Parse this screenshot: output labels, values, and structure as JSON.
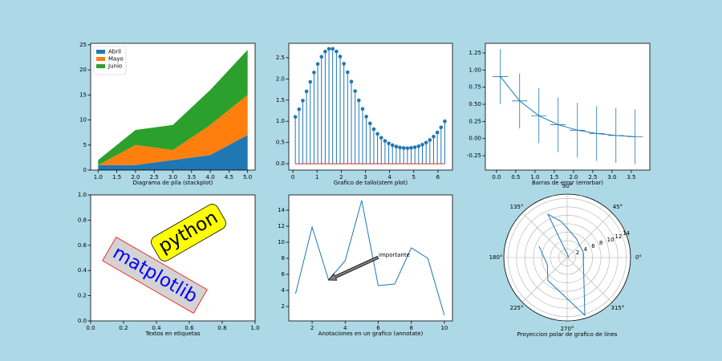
{
  "chart_data": [
    {
      "type": "stackplot",
      "xlabel": "Diagrama de pila (stackplot)",
      "legend": "upper left",
      "x": [
        1,
        2,
        3,
        4,
        5
      ],
      "series": [
        {
          "name": "Abril",
          "color": "#1f77b4",
          "values": [
            1,
            1,
            2,
            3,
            7
          ]
        },
        {
          "name": "Mayo",
          "color": "#ff7f0e",
          "values": [
            0,
            4,
            2,
            6,
            8
          ]
        },
        {
          "name": "Junio",
          "color": "#2ca02c",
          "values": [
            1,
            3,
            5,
            7,
            9
          ]
        }
      ],
      "xlim": [
        0.8,
        5.2
      ],
      "ylim": [
        0,
        25.3
      ],
      "xticks": [
        {
          "value": 1,
          "label": "1.0"
        },
        1.5,
        {
          "value": 2,
          "label": "2.0"
        },
        2.5,
        {
          "value": 3,
          "label": "3.0"
        },
        3.5,
        {
          "value": 4,
          "label": "4.0"
        },
        4.5,
        {
          "value": 5,
          "label": "5.0"
        }
      ],
      "yticks": [
        0,
        5,
        10,
        15,
        20,
        25
      ]
    },
    {
      "type": "stem",
      "xlabel": "Grafico de tallo(stem plot)",
      "color": "#1f77b4",
      "baseline_color": "#d62728",
      "x": [
        0.1,
        0.2546,
        0.4092,
        0.5637,
        0.7183,
        0.8729,
        1.0275,
        1.1821,
        1.3366,
        1.4912,
        1.6458,
        1.8004,
        1.955,
        2.1095,
        2.2641,
        2.4187,
        2.5733,
        2.7279,
        2.8824,
        3.037,
        3.1916,
        3.3462,
        3.5008,
        3.6553,
        3.8099,
        3.9645,
        4.1191,
        4.2737,
        4.4282,
        4.5828,
        4.7374,
        4.892,
        5.0466,
        5.2011,
        5.3557,
        5.5103,
        5.6649,
        5.8195,
        5.974,
        6.1286,
        6.2832
      ],
      "values": [
        1.105,
        1.286,
        1.489,
        1.706,
        1.931,
        2.152,
        2.353,
        2.522,
        2.645,
        2.71,
        2.711,
        2.648,
        2.528,
        2.359,
        2.158,
        1.937,
        1.713,
        1.495,
        1.292,
        1.11,
        0.951,
        0.816,
        0.704,
        0.612,
        0.538,
        0.48,
        0.437,
        0.404,
        0.383,
        0.371,
        0.368,
        0.374,
        0.389,
        0.414,
        0.449,
        0.497,
        0.56,
        0.639,
        0.738,
        0.857,
        1.0
      ],
      "xlim": [
        -0.17,
        6.6
      ],
      "ylim": [
        -0.15,
        2.84
      ],
      "xticks": [
        0,
        1,
        2,
        3,
        4,
        5,
        6
      ],
      "yticks": [
        {
          "value": 0,
          "label": "0.0"
        },
        0.5,
        {
          "value": 1,
          "label": "1.0"
        },
        1.5,
        {
          "value": 2,
          "label": "2.0"
        },
        2.5
      ]
    },
    {
      "type": "errorbar",
      "xlabel": "Barras de error (errorbar)",
      "color": "#1f77b4",
      "x": [
        0.1,
        0.6,
        1.1,
        1.6,
        2.1,
        2.6,
        3.1,
        3.6
      ],
      "values": [
        0.905,
        0.549,
        0.333,
        0.202,
        0.122,
        0.074,
        0.045,
        0.027
      ],
      "yerr": 0.4,
      "xerr": 0.2,
      "xlim": [
        -0.29,
        3.98
      ],
      "ylim": [
        -0.46,
        1.39
      ],
      "xticks": [
        {
          "value": 0,
          "label": "0.0"
        },
        0.5,
        {
          "value": 1,
          "label": "1.0"
        },
        1.5,
        {
          "value": 2,
          "label": "2.0"
        },
        2.5,
        {
          "value": 3,
          "label": "3.0"
        },
        3.5
      ],
      "yticks": [
        -0.25,
        {
          "value": 0,
          "label": "0.00"
        },
        0.25,
        {
          "value": 0.5,
          "label": "0.50"
        },
        0.75,
        {
          "value": 1,
          "label": "1.00"
        },
        1.25
      ]
    },
    {
      "type": "text",
      "xlabel": "Textos en etiquetas",
      "annotations": [
        {
          "text": "python",
          "color": "#000000",
          "box_color": "#ffff00",
          "edge_color": "#000000"
        },
        {
          "text": "matplotlib",
          "color": "#0000ff",
          "box_color": "#d3d3d3",
          "edge_color": "#ff0000"
        }
      ],
      "xlim": [
        0,
        1
      ],
      "ylim": [
        0,
        1
      ],
      "xticks": [
        {
          "value": 0,
          "label": "0.0"
        },
        0.2,
        0.4,
        0.6,
        0.8,
        {
          "value": 1,
          "label": "1.0"
        }
      ],
      "yticks": [
        {
          "value": 0,
          "label": "0.0"
        },
        0.2,
        0.4,
        0.6,
        0.8,
        {
          "value": 1,
          "label": "1.0"
        }
      ]
    },
    {
      "type": "line",
      "xlabel": "Anotaciones en un grafico (annotate)",
      "color": "#1f77b4",
      "annotation": "importante",
      "x": [
        1,
        2,
        3,
        4,
        5,
        6,
        7,
        8,
        9,
        10
      ],
      "values": [
        3.6,
        11.9,
        5.3,
        7.7,
        15.2,
        4.6,
        4.8,
        9.3,
        8.0,
        0.9
      ],
      "xlim": [
        0.59,
        10.49
      ],
      "ylim": [
        0.2,
        15.9
      ],
      "xticks": [
        2,
        4,
        6,
        8,
        10
      ],
      "yticks": [
        2,
        4,
        6,
        8,
        10,
        12,
        14
      ]
    },
    {
      "type": "polar",
      "xlabel": "Proyeccion polar de grafico de lines",
      "color": "#1f77b4",
      "grid": true,
      "theta": [
        0,
        114,
        99,
        65,
        19,
        287,
        230,
        200,
        158
      ],
      "values": [
        0.4,
        11.2,
        8.6,
        5.0,
        4.0,
        14.3,
        7.1,
        5.0,
        7.2
      ],
      "rlim": [
        0,
        15
      ],
      "rticks": [
        2,
        4,
        6,
        8,
        10,
        12,
        14
      ],
      "thetaticks": [
        {
          "value": 0,
          "label": "0°"
        },
        {
          "value": 45,
          "label": "45°"
        },
        {
          "value": 90,
          "label": "90°"
        },
        {
          "value": 135,
          "label": "135°"
        },
        {
          "value": 180,
          "label": "180°"
        },
        {
          "value": 225,
          "label": "225°"
        },
        {
          "value": 270,
          "label": "270°"
        },
        {
          "value": 315,
          "label": "315°"
        }
      ]
    }
  ]
}
